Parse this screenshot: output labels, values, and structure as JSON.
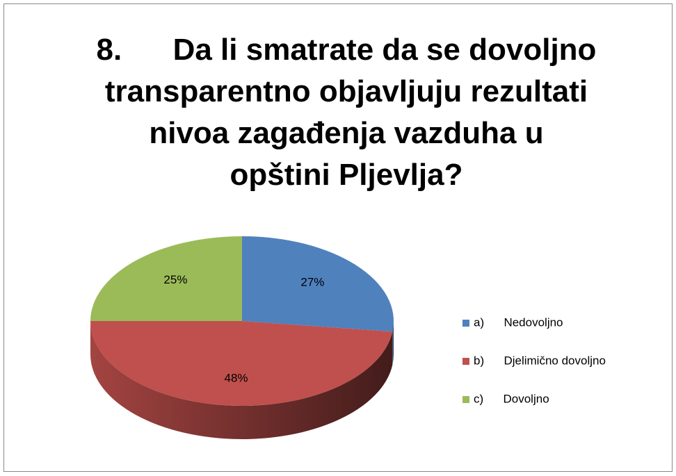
{
  "chart_data": {
    "type": "pie",
    "title": "8.      Da li smatrate da se dovoljno transparentno objavljuju rezultati nivoa zagađenja vazduha u opštini Pljevlja?",
    "categories": [
      "a)      Nedovoljno",
      "b)      Djelimično dovoljno",
      "c)      Dovoljno"
    ],
    "values": [
      27,
      48,
      25
    ],
    "value_labels": [
      "27%",
      "48%",
      "25%"
    ],
    "colors": [
      "#4f81bd",
      "#c0504d",
      "#9bbb59"
    ],
    "legend": "right"
  }
}
